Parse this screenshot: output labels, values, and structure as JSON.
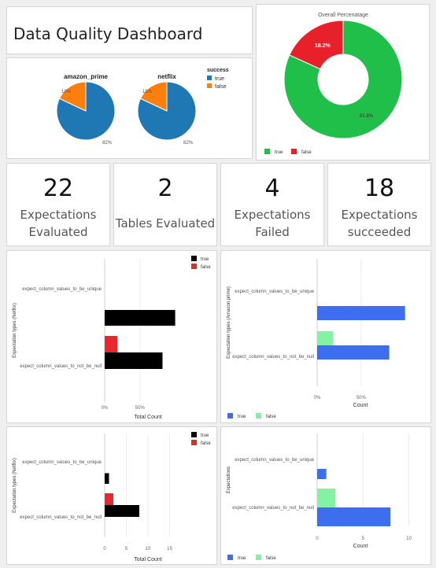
{
  "header": {
    "title": "Data Quality Dashboard"
  },
  "success_pies": {
    "legend_title": "success",
    "legend_true": "true",
    "legend_false": "false",
    "pie1": {
      "title": "amazon_prime",
      "true_pct": "82%",
      "false_pct": "18%"
    },
    "pie2": {
      "title": "netflix",
      "true_pct": "82%",
      "false_pct": "18%"
    }
  },
  "overall": {
    "title": "Overall Percenatage",
    "true_label": "81.8%",
    "false_label": "18.2%",
    "legend_true": "true",
    "legend_false": "false"
  },
  "kpis": [
    {
      "value": "22",
      "line1": "Expectations",
      "line2": "Evaluated"
    },
    {
      "value": "2",
      "line1": "Tables Evaluated",
      "line2": ""
    },
    {
      "value": "4",
      "line1": "Expectations",
      "line2": "Failed"
    },
    {
      "value": "18",
      "line1": "Expectations",
      "line2": "succeeded"
    }
  ],
  "colors": {
    "blue": "#1f77b4",
    "orange": "#ff7f0e",
    "green": "#1fbf4a",
    "red": "#e8202a",
    "black": "#000000",
    "bright_red": "#e8282e",
    "royal_blue": "#3d6ef0",
    "mint": "#84f2a4"
  },
  "chart_data": [
    {
      "type": "pie",
      "title": "amazon_prime",
      "labels": [
        "true",
        "false"
      ],
      "values": [
        82,
        18
      ],
      "legend_title": "success",
      "legend": "right"
    },
    {
      "type": "pie",
      "title": "netflix",
      "labels": [
        "true",
        "false"
      ],
      "values": [
        82,
        18
      ],
      "legend_title": "success",
      "legend": "right"
    },
    {
      "type": "pie",
      "title": "Overall Percenatage",
      "labels": [
        "true",
        "false"
      ],
      "values": [
        81.8,
        18.2
      ],
      "legend": "bottom-left"
    },
    {
      "type": "bar",
      "orientation": "horizontal",
      "categories": [
        "expect_column_values_to_be_unique",
        "expect_column_values_to_not_be_null"
      ],
      "series": [
        {
          "name": "true",
          "values": [
            100,
            82
          ]
        },
        {
          "name": "false",
          "values": [
            0,
            18
          ]
        }
      ],
      "xlabel": "Total Count",
      "ylabel": "Expectation types (Netflix)",
      "xticks": [
        "0%",
        "50%"
      ],
      "xlim": [
        0,
        125
      ],
      "legend": "top-right"
    },
    {
      "type": "bar",
      "orientation": "horizontal",
      "categories": [
        "expect_column_values_to_be_unique",
        "expect_column_values_to_not_be_null"
      ],
      "series": [
        {
          "name": "true",
          "values": [
            100,
            82
          ]
        },
        {
          "name": "false",
          "values": [
            0,
            18
          ]
        }
      ],
      "xlabel": "Count",
      "ylabel": "Expectation types (Amazon prime)",
      "xticks": [
        "0%",
        "50%"
      ],
      "xlim": [
        0,
        120
      ],
      "legend": "bottom-left"
    },
    {
      "type": "bar",
      "orientation": "horizontal",
      "categories": [
        "expect_column_values_to_be_unique",
        "expect_column_values_to_not_be_null"
      ],
      "series": [
        {
          "name": "true",
          "values": [
            1,
            8
          ]
        },
        {
          "name": "false",
          "values": [
            0,
            2
          ]
        }
      ],
      "xlabel": "Total Count",
      "ylabel": "Expectation types (Netflix)",
      "xticks": [
        "0",
        "5",
        "10",
        "15"
      ],
      "xlim": [
        0,
        20
      ],
      "legend": "top-right"
    },
    {
      "type": "bar",
      "orientation": "horizontal",
      "categories": [
        "expect_column_values_to_be_unique",
        "expect_column_values_to_not_be_null"
      ],
      "series": [
        {
          "name": "true",
          "values": [
            1,
            8
          ]
        },
        {
          "name": "false",
          "values": [
            0,
            2
          ]
        }
      ],
      "xlabel": "Count",
      "ylabel": "Expectations",
      "xticks": [
        "0",
        "5",
        "10"
      ],
      "xlim": [
        0,
        11.5
      ],
      "legend": "bottom-left"
    }
  ],
  "bar_charts": [
    {
      "cat1": "expect_column_values_to_be_unique",
      "cat2": "expect_column_values_to_not_be_null",
      "ylabel": "Expectation types (Netflix)",
      "xlabel": "Total Count",
      "legend_true": "true",
      "legend_false": "false",
      "ticks": [
        "0%",
        "50%"
      ]
    },
    {
      "cat1": "expect_column_values_to_be_unique",
      "cat2": "expect_column_values_to_not_be_null",
      "ylabel": "Expectation types (Amazon prime)",
      "xlabel": "Count",
      "legend_true": "true",
      "legend_false": "false",
      "ticks": [
        "0%",
        "50%"
      ]
    },
    {
      "cat1": "expect_column_values_to_be_unique",
      "cat2": "expect_column_values_to_not_be_null",
      "ylabel": "Expectation types (Netflix)",
      "xlabel": "Total Count",
      "legend_true": "true",
      "legend_false": "false",
      "ticks": [
        "0",
        "5",
        "10",
        "15"
      ]
    },
    {
      "cat1": "expect_column_values_to_be_unique",
      "cat2": "expect_column_values_to_not_be_null",
      "ylabel": "Expectations",
      "xlabel": "Count",
      "legend_true": "true",
      "legend_false": "false",
      "ticks": [
        "0",
        "5",
        "10"
      ]
    }
  ]
}
